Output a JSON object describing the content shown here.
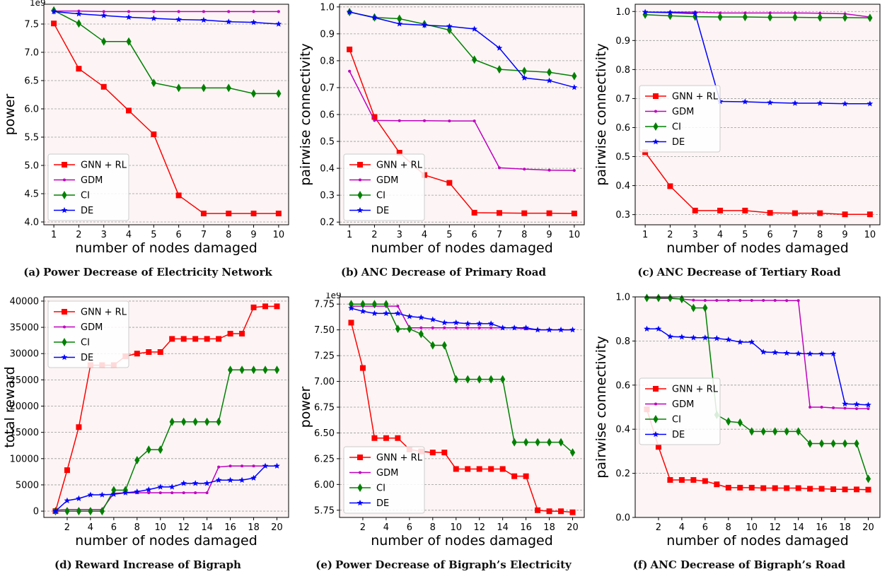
{
  "figure": {
    "panels": [
      {
        "tag": "(a)",
        "caption": "Power Decrease of Electricity Network",
        "offset_label": "1e9"
      },
      {
        "tag": "(b)",
        "caption": "ANC Decrease of Primary Road",
        "offset_label": ""
      },
      {
        "tag": "(c)",
        "caption": "ANC Decrease of Tertiary Road",
        "offset_label": ""
      },
      {
        "tag": "(d)",
        "caption": "Reward Increase of Bigraph",
        "offset_label": ""
      },
      {
        "tag": "(e)",
        "caption": "Power Decrease of Bigraph’s Electricity",
        "offset_label": "1e9"
      },
      {
        "tag": "(f)",
        "caption": "ANC Decrease of Bigraph’s Road",
        "offset_label": ""
      }
    ],
    "series_styles": {
      "GNN + RL": {
        "color": "#ff0000",
        "marker": "square"
      },
      "GDM": {
        "color": "#bf00bf",
        "marker": "dot"
      },
      "CI": {
        "color": "#008000",
        "marker": "diamond"
      },
      "DE": {
        "color": "#0000ff",
        "marker": "star"
      }
    },
    "plot_background": "#fdf5f5",
    "grid_color": "#9a9a9a"
  },
  "chart_data": [
    {
      "type": "line",
      "xlabel": "number of nodes damaged",
      "ylabel": "power",
      "x": [
        1,
        2,
        3,
        4,
        5,
        6,
        7,
        8,
        9,
        10
      ],
      "xticks": [
        1,
        2,
        3,
        4,
        5,
        6,
        7,
        8,
        9,
        10
      ],
      "xlim": [
        0.6,
        10.4
      ],
      "yticks": [
        4.0,
        4.5,
        5.0,
        5.5,
        6.0,
        6.5,
        7.0,
        7.5
      ],
      "yticklabels": [
        "4.0",
        "4.5",
        "5.0",
        "5.5",
        "6.0",
        "6.5",
        "7.0",
        "7.5"
      ],
      "ylim": [
        3.95,
        7.85
      ],
      "legend": "lower-left",
      "grid": "horizontal",
      "series": [
        {
          "name": "GNN + RL",
          "values": [
            7.51,
            6.71,
            6.39,
            5.97,
            5.55,
            4.47,
            4.15,
            4.15,
            4.15,
            4.15
          ]
        },
        {
          "name": "GDM",
          "values": [
            7.73,
            7.73,
            7.72,
            7.72,
            7.72,
            7.72,
            7.72,
            7.72,
            7.72,
            7.72
          ]
        },
        {
          "name": "CI",
          "values": [
            7.74,
            7.51,
            7.19,
            7.19,
            6.46,
            6.37,
            6.37,
            6.37,
            6.27,
            6.27
          ]
        },
        {
          "name": "DE",
          "values": [
            7.72,
            7.68,
            7.65,
            7.62,
            7.6,
            7.58,
            7.57,
            7.54,
            7.53,
            7.5
          ]
        }
      ]
    },
    {
      "type": "line",
      "xlabel": "number of nodes damaged",
      "ylabel": "pairwise connectivity",
      "x": [
        1,
        2,
        3,
        4,
        5,
        6,
        7,
        8,
        9,
        10
      ],
      "xticks": [
        1,
        2,
        3,
        4,
        5,
        6,
        7,
        8,
        9,
        10
      ],
      "xlim": [
        0.6,
        10.4
      ],
      "yticks": [
        0.2,
        0.3,
        0.4,
        0.5,
        0.6,
        0.7,
        0.8,
        0.9,
        1.0
      ],
      "yticklabels": [
        "0.2",
        "0.3",
        "0.4",
        "0.5",
        "0.6",
        "0.7",
        "0.8",
        "0.9",
        "1.0"
      ],
      "ylim": [
        0.19,
        1.01
      ],
      "legend": "lower-left",
      "grid": "horizontal",
      "series": [
        {
          "name": "GNN + RL",
          "values": [
            0.842,
            0.591,
            0.458,
            0.375,
            0.346,
            0.235,
            0.234,
            0.233,
            0.233,
            0.232
          ]
        },
        {
          "name": "GDM",
          "values": [
            0.761,
            0.578,
            0.577,
            0.577,
            0.576,
            0.576,
            0.402,
            0.397,
            0.393,
            0.392
          ]
        },
        {
          "name": "CI",
          "values": [
            0.981,
            0.961,
            0.956,
            0.936,
            0.914,
            0.804,
            0.768,
            0.762,
            0.757,
            0.743
          ]
        },
        {
          "name": "DE",
          "values": [
            0.981,
            0.96,
            0.937,
            0.932,
            0.928,
            0.918,
            0.847,
            0.736,
            0.726,
            0.701
          ]
        }
      ]
    },
    {
      "type": "line",
      "xlabel": "number of nodes damaged",
      "ylabel": "pairwise connectivity",
      "x": [
        1,
        2,
        3,
        4,
        5,
        6,
        7,
        8,
        9,
        10
      ],
      "xticks": [
        1,
        2,
        3,
        4,
        5,
        6,
        7,
        8,
        9,
        10
      ],
      "xlim": [
        0.6,
        10.4
      ],
      "yticks": [
        0.3,
        0.4,
        0.5,
        0.6,
        0.7,
        0.8,
        0.9,
        1.0
      ],
      "yticklabels": [
        "0.3",
        "0.4",
        "0.5",
        "0.6",
        "0.7",
        "0.8",
        "0.9",
        "1.0"
      ],
      "ylim": [
        0.265,
        1.025
      ],
      "legend": "center-left",
      "grid": "horizontal",
      "series": [
        {
          "name": "GNN + RL",
          "values": [
            0.515,
            0.398,
            0.314,
            0.314,
            0.314,
            0.306,
            0.305,
            0.305,
            0.301,
            0.301
          ]
        },
        {
          "name": "GDM",
          "values": [
            0.998,
            0.998,
            0.998,
            0.995,
            0.995,
            0.995,
            0.995,
            0.994,
            0.992,
            0.981
          ]
        },
        {
          "name": "CI",
          "values": [
            0.989,
            0.985,
            0.982,
            0.981,
            0.981,
            0.98,
            0.98,
            0.979,
            0.979,
            0.978
          ]
        },
        {
          "name": "DE",
          "values": [
            0.998,
            0.996,
            0.993,
            0.69,
            0.689,
            0.686,
            0.684,
            0.684,
            0.682,
            0.682
          ]
        }
      ]
    },
    {
      "type": "line",
      "xlabel": "number of nodes damaged",
      "ylabel": "total reward",
      "x": [
        1,
        2,
        3,
        4,
        5,
        6,
        7,
        8,
        9,
        10,
        11,
        12,
        13,
        14,
        15,
        16,
        17,
        18,
        19,
        20
      ],
      "xticks": [
        2,
        4,
        6,
        8,
        10,
        12,
        14,
        16,
        18,
        20
      ],
      "xlim": [
        0,
        21
      ],
      "yticks": [
        0,
        5000,
        10000,
        15000,
        20000,
        25000,
        30000,
        35000,
        40000
      ],
      "yticklabels": [
        "0",
        "5000",
        "10000",
        "15000",
        "20000",
        "25000",
        "30000",
        "35000",
        "40000"
      ],
      "ylim": [
        -1200,
        40800
      ],
      "legend": "upper-left",
      "grid": "horizontal",
      "series": [
        {
          "name": "GNN + RL",
          "values": [
            0,
            7800,
            16000,
            27800,
            27800,
            27800,
            29500,
            30000,
            30300,
            30300,
            32800,
            32800,
            32800,
            32800,
            32800,
            33800,
            33800,
            38800,
            39000,
            39000
          ]
        },
        {
          "name": "GDM",
          "values": [
            200,
            300,
            300,
            300,
            300,
            3400,
            3500,
            3500,
            3500,
            3500,
            3500,
            3500,
            3500,
            3500,
            8400,
            8600,
            8600,
            8600,
            8600,
            8600
          ]
        },
        {
          "name": "CI",
          "values": [
            0,
            0,
            0,
            0,
            0,
            4000,
            4000,
            9700,
            11700,
            11700,
            17000,
            17000,
            17000,
            17000,
            17000,
            26900,
            26900,
            26900,
            26900,
            26900
          ]
        },
        {
          "name": "DE",
          "values": [
            0,
            2000,
            2400,
            3100,
            3100,
            3200,
            3500,
            3700,
            4100,
            4600,
            4600,
            5300,
            5300,
            5300,
            5900,
            5900,
            5900,
            6300,
            8600,
            8600
          ]
        }
      ]
    },
    {
      "type": "line",
      "xlabel": "number of nodes damaged",
      "ylabel": "power",
      "x": [
        1,
        2,
        3,
        4,
        5,
        6,
        7,
        8,
        9,
        10,
        11,
        12,
        13,
        14,
        15,
        16,
        17,
        18,
        19,
        20
      ],
      "xticks": [
        2,
        4,
        6,
        8,
        10,
        12,
        14,
        16,
        18,
        20
      ],
      "xlim": [
        0,
        21
      ],
      "yticks": [
        5.75,
        6.0,
        6.25,
        6.5,
        6.75,
        7.0,
        7.25,
        7.5,
        7.75
      ],
      "yticklabels": [
        "5.75",
        "6.00",
        "6.25",
        "6.50",
        "6.75",
        "7.00",
        "7.25",
        "7.50",
        "7.75"
      ],
      "ylim": [
        5.68,
        7.82
      ],
      "legend": "lower-left",
      "grid": "horizontal",
      "series": [
        {
          "name": "GNN + RL",
          "values": [
            7.57,
            7.13,
            6.45,
            6.45,
            6.45,
            6.34,
            6.32,
            6.31,
            6.31,
            6.15,
            6.15,
            6.15,
            6.15,
            6.15,
            6.08,
            6.08,
            5.75,
            5.74,
            5.74,
            5.73
          ]
        },
        {
          "name": "GDM",
          "values": [
            7.73,
            7.73,
            7.73,
            7.73,
            7.73,
            7.52,
            7.52,
            7.52,
            7.52,
            7.52,
            7.52,
            7.52,
            7.52,
            7.52,
            7.52,
            7.51,
            7.5,
            7.5,
            7.5,
            7.5
          ]
        },
        {
          "name": "CI",
          "values": [
            7.75,
            7.75,
            7.75,
            7.75,
            7.51,
            7.51,
            7.46,
            7.35,
            7.35,
            7.02,
            7.02,
            7.02,
            7.02,
            7.02,
            6.41,
            6.41,
            6.41,
            6.41,
            6.41,
            6.31
          ]
        },
        {
          "name": "DE",
          "values": [
            7.71,
            7.68,
            7.66,
            7.66,
            7.66,
            7.63,
            7.62,
            7.6,
            7.57,
            7.57,
            7.56,
            7.56,
            7.56,
            7.52,
            7.52,
            7.52,
            7.5,
            7.5,
            7.5,
            7.5
          ]
        }
      ]
    },
    {
      "type": "line",
      "xlabel": "number of nodes damaged",
      "ylabel": "pairwise connectivity",
      "x": [
        1,
        2,
        3,
        4,
        5,
        6,
        7,
        8,
        9,
        10,
        11,
        12,
        13,
        14,
        15,
        16,
        17,
        18,
        19,
        20
      ],
      "xticks": [
        2,
        4,
        6,
        8,
        10,
        12,
        14,
        16,
        18,
        20
      ],
      "xlim": [
        0,
        21
      ],
      "yticks": [
        0.0,
        0.2,
        0.4,
        0.6,
        0.8,
        1.0
      ],
      "yticklabels": [
        "0.0",
        "0.2",
        "0.4",
        "0.6",
        "0.8",
        "1.0"
      ],
      "ylim": [
        0.0,
        1.0
      ],
      "legend": "center-left",
      "grid": "horizontal",
      "series": [
        {
          "name": "GNN + RL",
          "values": [
            0.49,
            0.32,
            0.17,
            0.17,
            0.17,
            0.165,
            0.15,
            0.135,
            0.135,
            0.135,
            0.133,
            0.133,
            0.133,
            0.133,
            0.13,
            0.13,
            0.128,
            0.127,
            0.127,
            0.126
          ]
        },
        {
          "name": "GDM",
          "values": [
            0.995,
            0.993,
            0.993,
            0.99,
            0.985,
            0.984,
            0.984,
            0.984,
            0.984,
            0.984,
            0.984,
            0.984,
            0.983,
            0.983,
            0.5,
            0.5,
            0.497,
            0.495,
            0.493,
            0.493
          ]
        },
        {
          "name": "CI",
          "values": [
            0.995,
            0.995,
            0.995,
            0.99,
            0.95,
            0.95,
            0.465,
            0.435,
            0.43,
            0.39,
            0.39,
            0.39,
            0.39,
            0.39,
            0.335,
            0.335,
            0.335,
            0.335,
            0.335,
            0.175
          ]
        },
        {
          "name": "DE",
          "values": [
            0.855,
            0.855,
            0.82,
            0.818,
            0.815,
            0.815,
            0.812,
            0.806,
            0.795,
            0.795,
            0.75,
            0.748,
            0.745,
            0.743,
            0.742,
            0.742,
            0.742,
            0.515,
            0.513,
            0.51
          ]
        }
      ]
    }
  ]
}
